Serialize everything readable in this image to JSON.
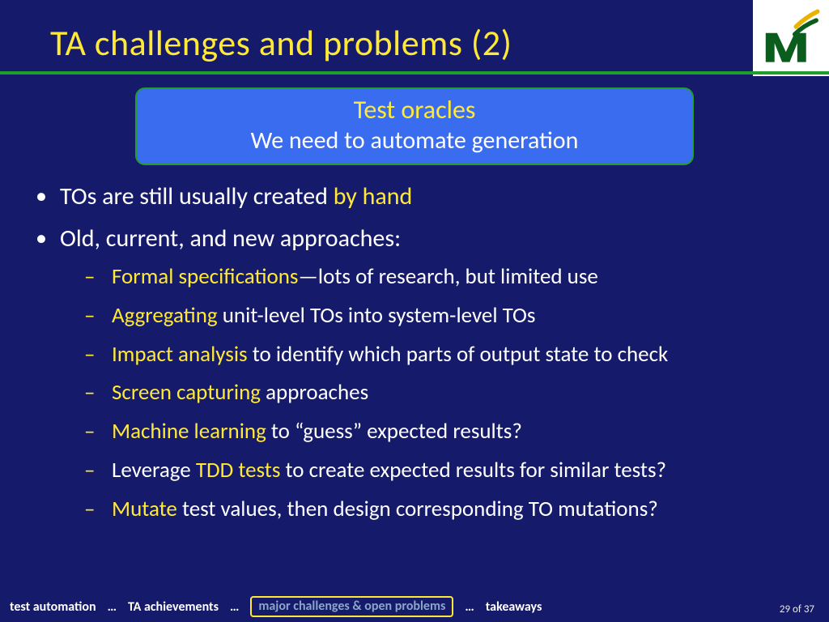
{
  "colors": {
    "background": "#151A6A",
    "title": "#FFE936",
    "rule": "#1F9E2E",
    "callout_bg": "#3A6CF0",
    "callout_border": "#1F9E2E",
    "callout_title": "#FFE936",
    "callout_sub": "#FFFFFF",
    "bullet_text": "#FFFFFF",
    "highlight": "#FFE936",
    "footer_text": "#FFFFFF",
    "footer_active_border": "#FFE936",
    "footer_active_text": "#8aa6c9"
  },
  "title": "TA challenges and problems (2)",
  "callout": {
    "title": "Test oracles",
    "subtitle": "We need to automate generation"
  },
  "bullets": [
    {
      "segments": [
        {
          "t": "TOs are still usually created "
        },
        {
          "t": "by hand",
          "hl": true
        }
      ]
    },
    {
      "segments": [
        {
          "t": "Old, current, and new approaches:"
        }
      ],
      "sub": [
        [
          {
            "t": "Formal specifications",
            "hl": true
          },
          {
            "t": "—lots of research, but limited use"
          }
        ],
        [
          {
            "t": "Aggregating",
            "hl": true
          },
          {
            "t": " unit-level TOs into system-level TOs"
          }
        ],
        [
          {
            "t": "Impact analysis",
            "hl": true
          },
          {
            "t": " to identify which parts of output state to check"
          }
        ],
        [
          {
            "t": "Screen capturing",
            "hl": true
          },
          {
            "t": " approaches"
          }
        ],
        [
          {
            "t": "Machine learning",
            "hl": true
          },
          {
            "t": " to “guess” expected results?"
          }
        ],
        [
          {
            "t": "Leverage "
          },
          {
            "t": "TDD tests",
            "hl": true
          },
          {
            "t": " to create expected results for similar tests?"
          }
        ],
        [
          {
            "t": "Mutate",
            "hl": true
          },
          {
            "t": " test values, then design corresponding TO mutations?"
          }
        ]
      ]
    }
  ],
  "footer": {
    "items": [
      {
        "label": "test automation",
        "active": false
      },
      {
        "label": "TA achievements",
        "active": false
      },
      {
        "label": "major challenges & open problems",
        "active": true
      },
      {
        "label": "takeaways",
        "active": false
      }
    ],
    "separator": "…"
  },
  "page": {
    "current": 29,
    "total": 37,
    "of_word": "of"
  }
}
